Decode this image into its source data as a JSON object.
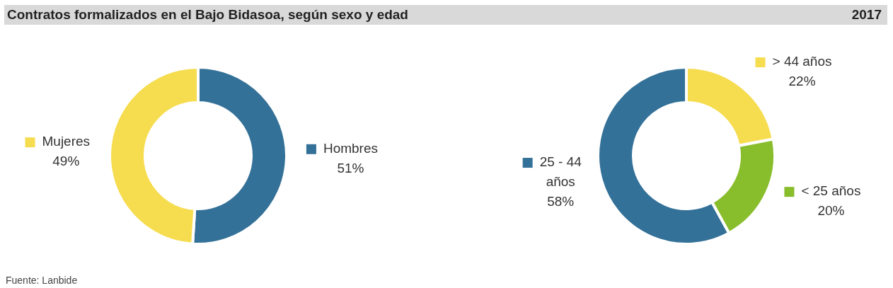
{
  "chart_data": [
    {
      "type": "donut",
      "title": "Contratos formalizados en el Bajo Bidasoa, según sexo y edad",
      "legend": "right",
      "categories": [
        "Hombres",
        "Mujeres"
      ],
      "values": [
        51,
        49
      ],
      "colors": [
        "#347198",
        "#f6dc4f"
      ],
      "value_labels": [
        "51%",
        "49%"
      ],
      "annotations": [
        "Fuente: Lanbide"
      ]
    },
    {
      "type": "donut",
      "subtitle": "2017",
      "legend": "right",
      "categories": [
        "> 44 años",
        "< 25 años",
        "25 - 44 años"
      ],
      "values": [
        22,
        20,
        58
      ],
      "colors": [
        "#f6dc4f",
        "#88bd2b",
        "#347198"
      ],
      "value_labels": [
        "22%",
        "20%",
        "58%"
      ]
    }
  ]
}
